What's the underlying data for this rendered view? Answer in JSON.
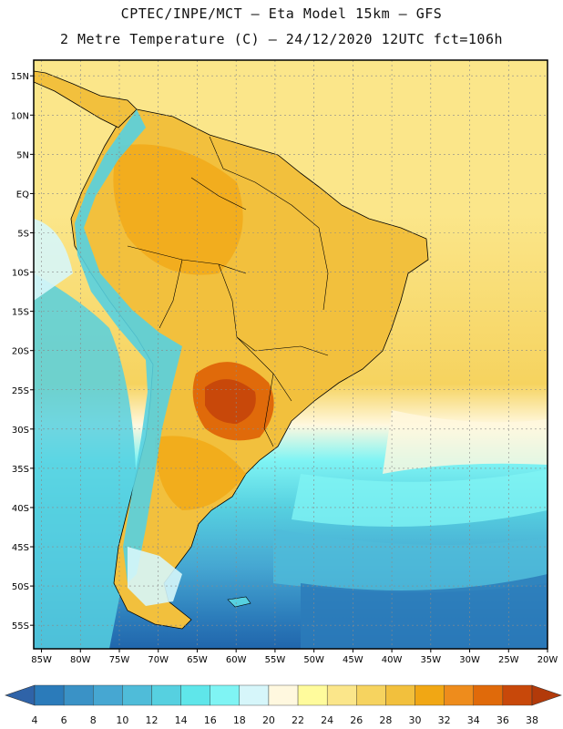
{
  "header": {
    "line1": "CPTEC/INPE/MCT –  Eta Model 15km – GFS",
    "line2": "2 Metre Temperature (C) – 24/12/2020 12UTC fct=106h"
  },
  "map": {
    "variable": "2 Metre Temperature",
    "unit": "C",
    "lat_range": [
      -58,
      17
    ],
    "lon_range": [
      -86,
      -20
    ],
    "lat_ticks": [
      "15N",
      "10N",
      "5N",
      "EQ",
      "5S",
      "10S",
      "15S",
      "20S",
      "25S",
      "30S",
      "35S",
      "40S",
      "45S",
      "50S",
      "55S"
    ],
    "lat_values": [
      15,
      10,
      5,
      0,
      -5,
      -10,
      -15,
      -20,
      -25,
      -30,
      -35,
      -40,
      -45,
      -50,
      -55
    ],
    "lon_ticks": [
      "85W",
      "80W",
      "75W",
      "70W",
      "65W",
      "60W",
      "55W",
      "50W",
      "45W",
      "40W",
      "35W",
      "30W",
      "25W",
      "20W"
    ],
    "lon_values": [
      -85,
      -80,
      -75,
      -70,
      -65,
      -60,
      -55,
      -50,
      -45,
      -40,
      -35,
      -30,
      -25,
      -20
    ]
  },
  "legend": {
    "labels": [
      "4",
      "6",
      "8",
      "10",
      "12",
      "14",
      "16",
      "18",
      "20",
      "22",
      "24",
      "26",
      "28",
      "30",
      "32",
      "34",
      "36",
      "38"
    ],
    "colors": [
      "#2166ac",
      "#2b7bba",
      "#3a92c6",
      "#46a7d2",
      "#4fbcd9",
      "#56d0e0",
      "#5fe6ea",
      "#7ff4f4",
      "#d6f6fa",
      "#fff8df",
      "#fffb9c",
      "#fbe68a",
      "#f6d35f",
      "#f2c03d",
      "#f1a714",
      "#ee8c1c",
      "#e06a0a",
      "#c8480a",
      "#b23a0a"
    ],
    "low_arrow_color": "#2f63a8",
    "high_arrow_color": "#b23a0a"
  }
}
